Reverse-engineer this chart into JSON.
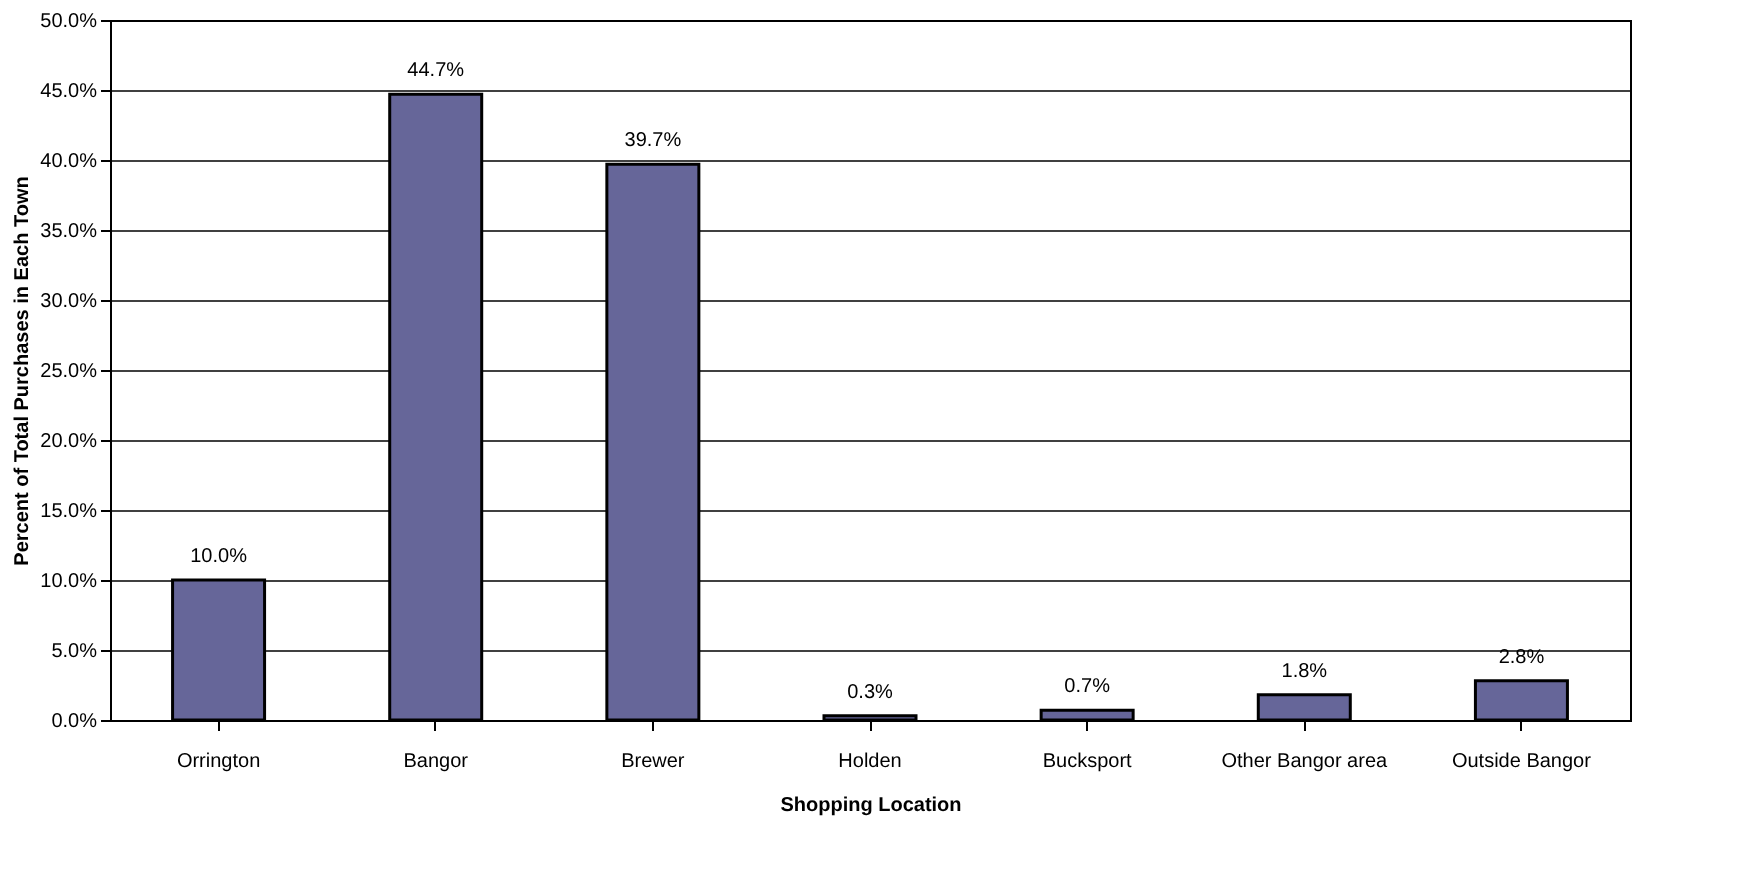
{
  "chart_data": {
    "type": "bar",
    "xlabel": "Shopping Location",
    "ylabel": "Percent of Total Purchases in Each Town",
    "categories": [
      "Orrington",
      "Bangor",
      "Brewer",
      "Holden",
      "Bucksport",
      "Other Bangor area",
      "Outside Bangor"
    ],
    "values": [
      10.0,
      44.7,
      39.7,
      0.3,
      0.7,
      1.8,
      2.8
    ],
    "value_labels": [
      "10.0%",
      "44.7%",
      "39.7%",
      "0.3%",
      "0.7%",
      "1.8%",
      "2.8%"
    ],
    "color": "#666699",
    "ylim": [
      0,
      50
    ],
    "yticks": [
      {
        "value": 0,
        "label": "0.0%"
      },
      {
        "value": 5,
        "label": "5.0%"
      },
      {
        "value": 10,
        "label": "10.0%"
      },
      {
        "value": 15,
        "label": "15.0%"
      },
      {
        "value": 20,
        "label": "20.0%"
      },
      {
        "value": 25,
        "label": "25.0%"
      },
      {
        "value": 30,
        "label": "30.0%"
      },
      {
        "value": 35,
        "label": "35.0%"
      },
      {
        "value": 40,
        "label": "40.0%"
      },
      {
        "value": 45,
        "label": "45.0%"
      },
      {
        "value": 50,
        "label": "50.0%"
      }
    ],
    "grid": "y"
  }
}
